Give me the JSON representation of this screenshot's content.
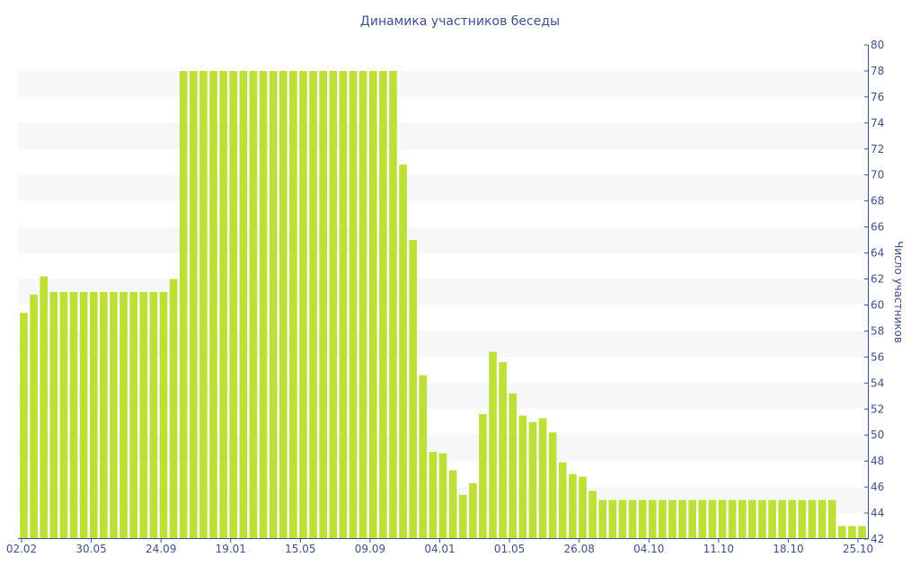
{
  "chart_data": {
    "type": "bar",
    "title": "Динамика участников беседы",
    "xlabel": "",
    "ylabel": "Число участников",
    "ylim": [
      42,
      80
    ],
    "y_ticks": [
      42,
      44,
      46,
      48,
      50,
      52,
      54,
      56,
      58,
      60,
      62,
      64,
      66,
      68,
      70,
      72,
      74,
      76,
      78,
      80
    ],
    "y_axis_side": "right",
    "grid": "alternating horizontal bands",
    "x_tick_labels": [
      "02.02",
      "30.05",
      "24.09",
      "19.01",
      "15.05",
      "09.09",
      "04.01",
      "01.05",
      "26.08",
      "04.10",
      "11.10",
      "18.10",
      "25.10"
    ],
    "bar_color": "#bedf36",
    "values": [
      59.4,
      60.8,
      62.2,
      61,
      61,
      61,
      61,
      61,
      61,
      61,
      61,
      61,
      61,
      61,
      61,
      62,
      78,
      78,
      78,
      78,
      78,
      78,
      78,
      78,
      78,
      78,
      78,
      78,
      78,
      78,
      78,
      78,
      78,
      78,
      78,
      78,
      78,
      78,
      70.8,
      65,
      54.6,
      48.7,
      48.6,
      47.3,
      45.4,
      46.3,
      51.6,
      56.4,
      55.6,
      53.2,
      51.5,
      51,
      51.3,
      50.2,
      47.9,
      47,
      46.8,
      45.7,
      45,
      45,
      45,
      45,
      45,
      45,
      45,
      45,
      45,
      45,
      45,
      45,
      45,
      45,
      45,
      45,
      45,
      45,
      45,
      45,
      45,
      45,
      45,
      45,
      43,
      43,
      43
    ]
  }
}
